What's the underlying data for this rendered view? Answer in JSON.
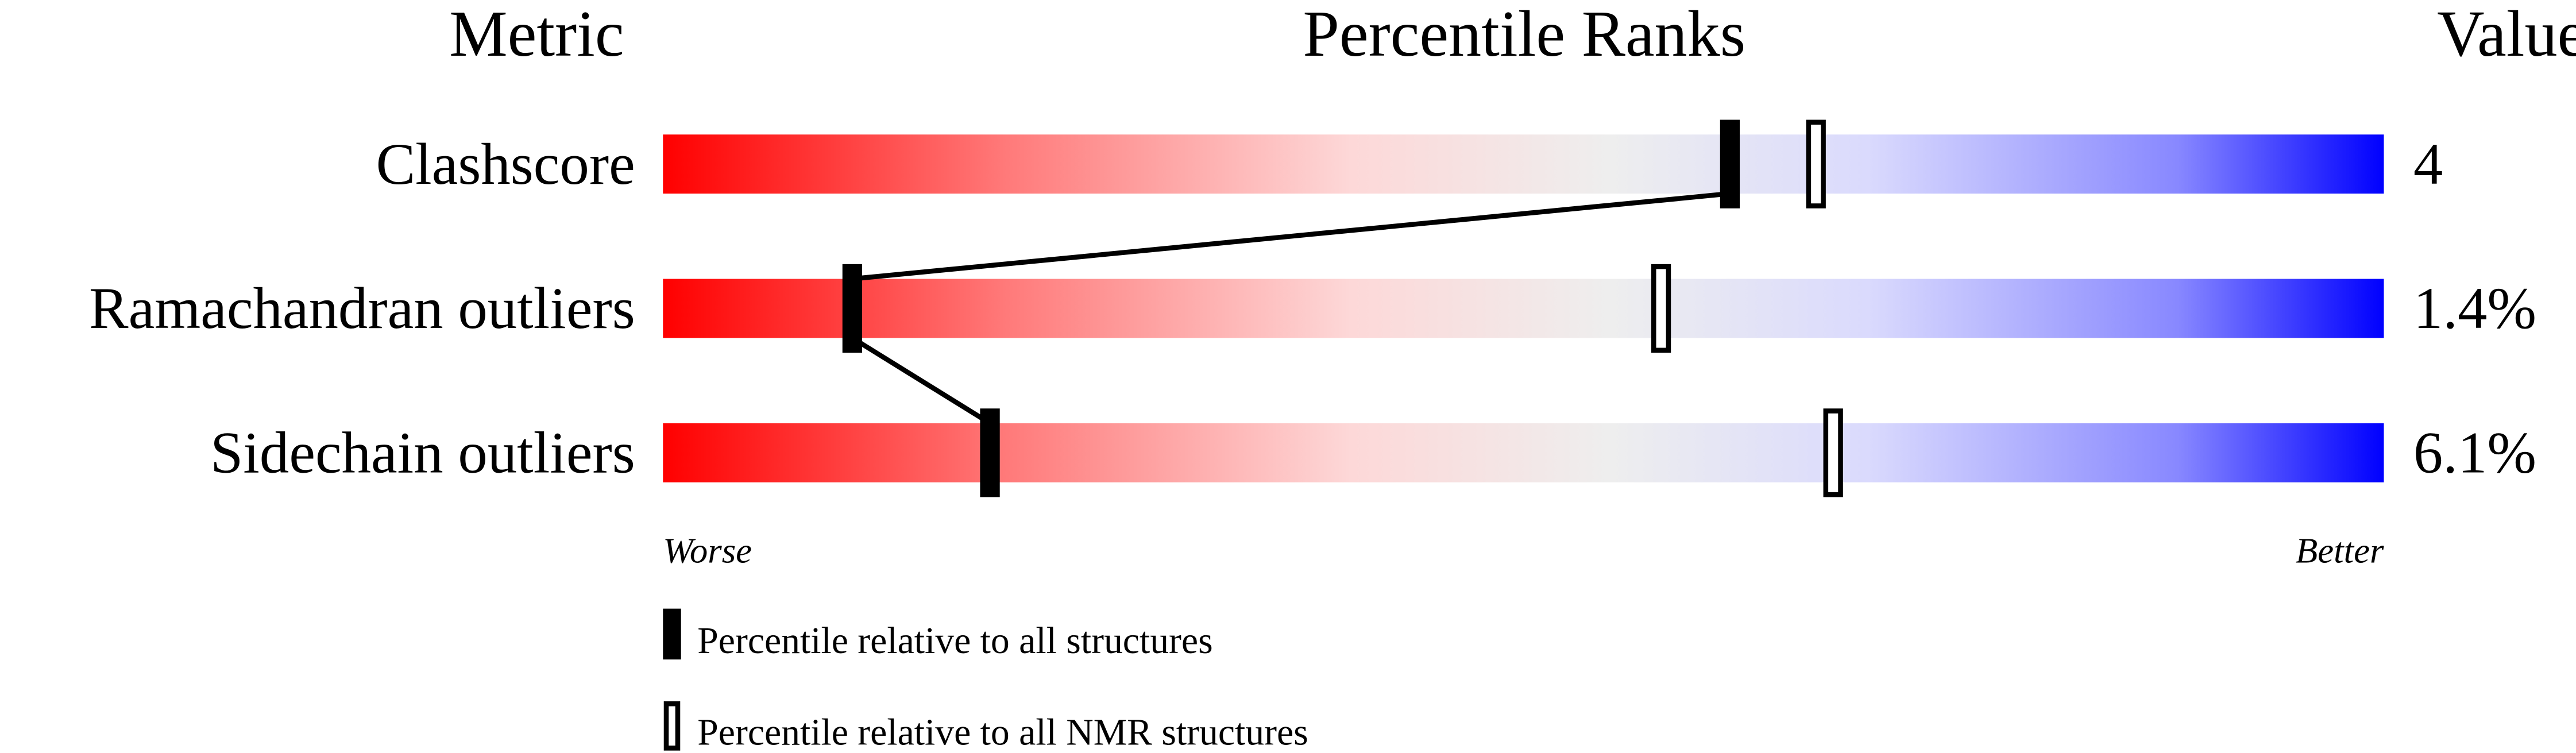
{
  "chart_data": {
    "type": "percentile-slider",
    "headers": {
      "metric": "Metric",
      "ranks": "Percentile Ranks",
      "value": "Value"
    },
    "axis": {
      "left_label": "Worse",
      "right_label": "Better",
      "range": [
        0,
        100
      ]
    },
    "colors": {
      "worse": "#ff0000",
      "middle": "#eeeeee",
      "better": "#0000ff"
    },
    "rows": [
      {
        "metric": "Clashscore",
        "value": "4",
        "percentile_all": 62,
        "percentile_nmr": 67
      },
      {
        "metric": "Ramachandran outliers",
        "value": "1.4%",
        "percentile_all": 11,
        "percentile_nmr": 58
      },
      {
        "metric": "Sidechain outliers",
        "value": "6.1%",
        "percentile_all": 19,
        "percentile_nmr": 68
      }
    ],
    "legend": [
      {
        "marker": "filled",
        "label": "Percentile relative to all structures"
      },
      {
        "marker": "hollow",
        "label": "Percentile relative to all NMR structures"
      }
    ]
  }
}
